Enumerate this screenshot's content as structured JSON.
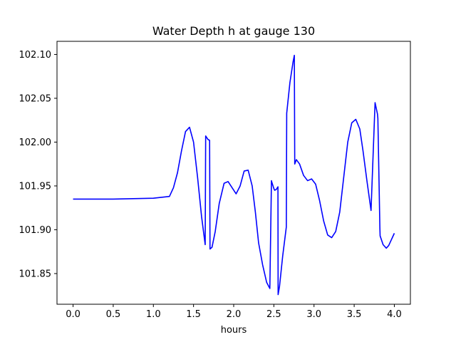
{
  "chart_data": {
    "type": "line",
    "title": "Water Depth h at gauge 130",
    "xlabel": "hours",
    "ylabel": "",
    "xlim": [
      -0.2,
      4.2
    ],
    "ylim": [
      101.815,
      102.115
    ],
    "x_ticks": [
      0.0,
      0.5,
      1.0,
      1.5,
      2.0,
      2.5,
      3.0,
      3.5,
      4.0
    ],
    "x_tick_labels": [
      "0.0",
      "0.5",
      "1.0",
      "1.5",
      "2.0",
      "2.5",
      "3.0",
      "3.5",
      "4.0"
    ],
    "y_ticks": [
      101.85,
      101.9,
      101.95,
      102.0,
      102.05,
      102.1
    ],
    "y_tick_labels": [
      "101.85",
      "101.90",
      "101.95",
      "102.00",
      "102.05",
      "102.10"
    ],
    "grid": false,
    "series": [
      {
        "name": "",
        "color": "#0000ff",
        "x": [
          0.0,
          0.5,
          1.0,
          1.2,
          1.25,
          1.3,
          1.35,
          1.4,
          1.45,
          1.5,
          1.55,
          1.6,
          1.645,
          1.651,
          1.68,
          1.7,
          1.705,
          1.73,
          1.77,
          1.82,
          1.88,
          1.93,
          1.98,
          2.03,
          2.08,
          2.13,
          2.18,
          2.23,
          2.27,
          2.31,
          2.36,
          2.41,
          2.45,
          2.47,
          2.472,
          2.5,
          2.51,
          2.53,
          2.551,
          2.553,
          2.57,
          2.61,
          2.655,
          2.66,
          2.7,
          2.74,
          2.755,
          2.76,
          2.78,
          2.82,
          2.87,
          2.92,
          2.97,
          3.02,
          3.07,
          3.12,
          3.17,
          3.22,
          3.27,
          3.32,
          3.37,
          3.42,
          3.47,
          3.52,
          3.57,
          3.61,
          3.66,
          3.71,
          3.76,
          3.79,
          3.795,
          3.82,
          3.823,
          3.86,
          3.9,
          3.93,
          3.96,
          4.0
        ],
        "y": [
          101.935,
          101.935,
          101.936,
          101.938,
          101.948,
          101.965,
          101.99,
          102.012,
          102.017,
          102.0,
          101.96,
          101.915,
          101.883,
          102.007,
          102.003,
          102.002,
          101.878,
          101.88,
          101.898,
          101.93,
          101.953,
          101.955,
          101.948,
          101.941,
          101.95,
          101.967,
          101.968,
          101.95,
          101.92,
          101.885,
          101.86,
          101.84,
          101.833,
          101.956,
          101.955,
          101.947,
          101.945,
          101.946,
          101.949,
          101.826,
          101.835,
          101.87,
          101.903,
          102.033,
          102.068,
          102.092,
          102.099,
          101.975,
          101.98,
          101.975,
          101.962,
          101.956,
          101.958,
          101.952,
          101.933,
          101.91,
          101.894,
          101.891,
          101.898,
          101.92,
          101.96,
          102.0,
          102.022,
          102.026,
          102.015,
          101.99,
          101.955,
          101.922,
          102.045,
          102.032,
          102.027,
          101.902,
          101.893,
          101.883,
          101.879,
          101.882,
          101.888,
          101.896
        ]
      }
    ]
  }
}
